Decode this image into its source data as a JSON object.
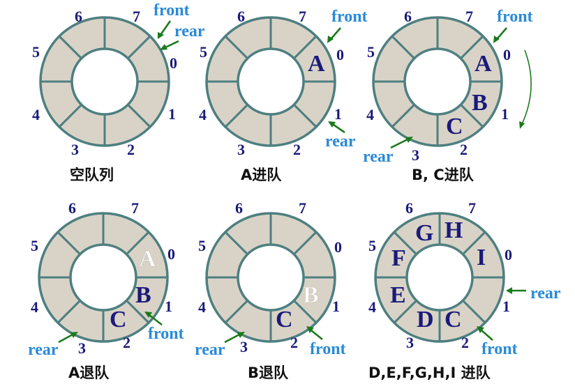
{
  "panels": [
    {
      "caption": "空队列",
      "indices": [
        "0",
        "1",
        "2",
        "3",
        "4",
        "5",
        "6",
        "7"
      ],
      "elements": {},
      "pointers": [
        {
          "label": "front",
          "slot_boundary": "7/0"
        },
        {
          "label": "rear",
          "slot_boundary": "7/0"
        }
      ]
    },
    {
      "caption": "A进队",
      "indices": [
        "0",
        "1",
        "2",
        "3",
        "4",
        "5",
        "6",
        "7"
      ],
      "elements": {
        "0": "A"
      },
      "pointers": [
        {
          "label": "front",
          "slot_boundary": "7/0"
        },
        {
          "label": "rear",
          "slot_boundary": "0/1"
        }
      ]
    },
    {
      "caption": "B, C进队",
      "indices": [
        "0",
        "1",
        "2",
        "3",
        "4",
        "5",
        "6",
        "7"
      ],
      "elements": {
        "0": "A",
        "1": "B",
        "2": "C"
      },
      "pointers": [
        {
          "label": "front",
          "slot_boundary": "7/0"
        },
        {
          "label": "rear",
          "slot_boundary": "2/3"
        }
      ],
      "has_rotation_arrow": true
    },
    {
      "caption": "A退队",
      "indices": [
        "0",
        "1",
        "2",
        "3",
        "4",
        "5",
        "6",
        "7"
      ],
      "elements": {
        "0": "A",
        "1": "B",
        "2": "C"
      },
      "dequeued": [
        "0"
      ],
      "pointers": [
        {
          "label": "front",
          "slot_boundary": "0/1"
        },
        {
          "label": "rear",
          "slot_boundary": "2/3"
        }
      ]
    },
    {
      "caption": "B退队",
      "indices": [
        "0",
        "1",
        "2",
        "3",
        "4",
        "5",
        "6",
        "7"
      ],
      "elements": {
        "1": "B",
        "2": "C"
      },
      "dequeued": [
        "1"
      ],
      "pointers": [
        {
          "label": "front",
          "slot_boundary": "1/2"
        },
        {
          "label": "rear",
          "slot_boundary": "2/3"
        }
      ]
    },
    {
      "caption": "D,E,F,G,H,I 进队",
      "indices": [
        "0",
        "1",
        "2",
        "3",
        "4",
        "5",
        "6",
        "7"
      ],
      "elements": {
        "2": "C",
        "3": "D",
        "4": "E",
        "5": "F",
        "6": "G",
        "7": "H",
        "0": "I"
      },
      "pointers": [
        {
          "label": "front",
          "slot_boundary": "1/2"
        },
        {
          "label": "rear",
          "slot_boundary": "0/1"
        }
      ]
    }
  ],
  "colors": {
    "ring_fill": "#d9d3c7",
    "ring_stroke": "#4e7f80",
    "index_text": "#1a1a7a",
    "pointer_text": "#2a8ad8",
    "arrow": "#1b7a1b"
  }
}
